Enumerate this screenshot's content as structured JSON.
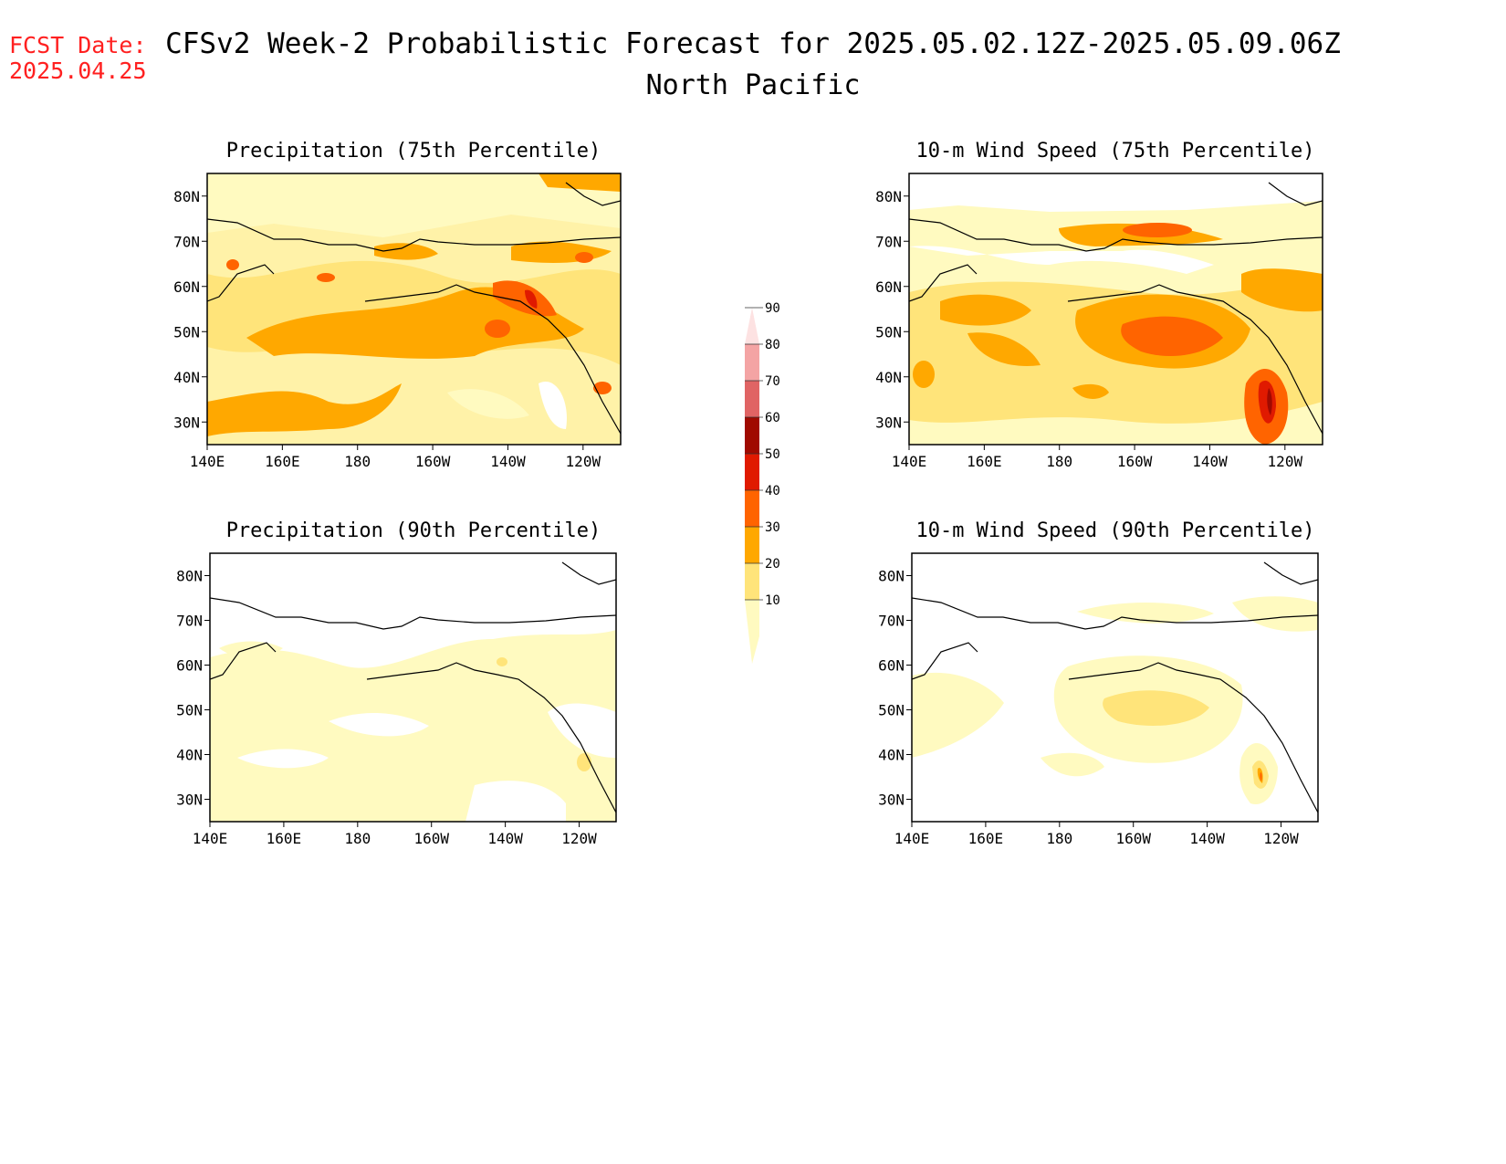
{
  "header": {
    "fcst_date_label": "FCST Date:",
    "fcst_date_value": "2025.04.25",
    "title": "CFSv2 Week-2 Probabilistic Forecast for 2025.05.02.12Z-2025.05.09.06Z",
    "region": "North Pacific"
  },
  "axes": {
    "lat_ticks": [
      "80N",
      "70N",
      "60N",
      "50N",
      "40N",
      "30N"
    ],
    "lon_ticks": [
      "140E",
      "160E",
      "180",
      "160W",
      "140W",
      "120W"
    ]
  },
  "panels": [
    {
      "id": "precip-75",
      "title": "Precipitation (75th Percentile)"
    },
    {
      "id": "wind-75",
      "title": "10-m Wind Speed (75th Percentile)"
    },
    {
      "id": "precip-90",
      "title": "Precipitation (90th Percentile)"
    },
    {
      "id": "wind-90",
      "title": "10-m Wind Speed (90th Percentile)"
    }
  ],
  "colorbar": {
    "levels": [
      "10",
      "20",
      "30",
      "40",
      "50",
      "60",
      "70",
      "80",
      "90"
    ],
    "colors": [
      "#fffac0",
      "#ffe47a",
      "#ffa800",
      "#ff6400",
      "#e01a00",
      "#a00a00",
      "#e06464",
      "#f4a4a4",
      "#fde2e2"
    ]
  }
}
